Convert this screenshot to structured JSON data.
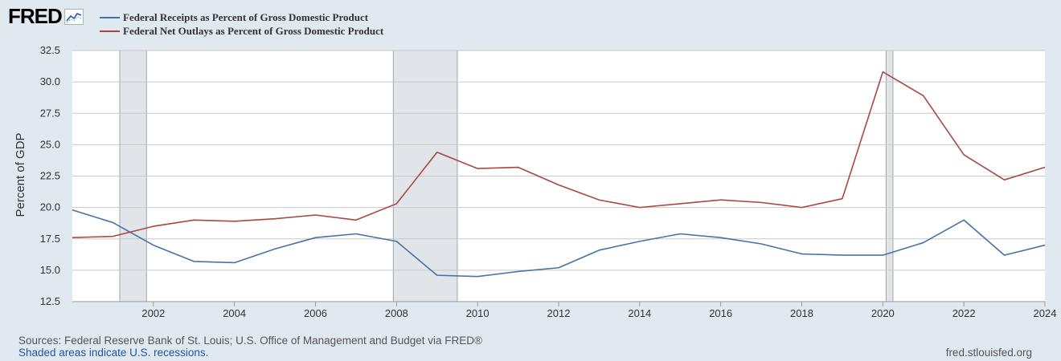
{
  "header": {
    "logo_text": "FRED",
    "logo_icon": "chart-line-icon"
  },
  "colors": {
    "background": "#e1e9f0",
    "plot_background": "#ffffff",
    "recession_shade": "#e1e5e9",
    "series_receipts": "#4572a7",
    "series_outlays": "#aa4643"
  },
  "footer": {
    "sources": "Sources: Federal Reserve Bank of St. Louis; U.S. Office of Management and Budget via FRED®",
    "shaded_note": "Shaded areas indicate U.S. recessions.",
    "site": "fred.stlouisfed.org"
  },
  "chart_data": {
    "type": "line",
    "ylabel": "Percent of GDP",
    "xlim": [
      2000,
      2024
    ],
    "ylim": [
      12.5,
      32.5
    ],
    "yticks": [
      "12.5",
      "15.0",
      "17.5",
      "20.0",
      "22.5",
      "25.0",
      "27.5",
      "30.0",
      "32.5"
    ],
    "xticks": [
      "2002",
      "2004",
      "2006",
      "2008",
      "2010",
      "2012",
      "2014",
      "2016",
      "2018",
      "2020",
      "2022",
      "2024"
    ],
    "grid": true,
    "legend": "top-left",
    "recessions": [
      [
        2001.17,
        2001.83
      ],
      [
        2007.92,
        2009.5
      ],
      [
        2020.08,
        2020.25
      ]
    ],
    "x": [
      2000,
      2001,
      2002,
      2003,
      2004,
      2005,
      2006,
      2007,
      2008,
      2009,
      2010,
      2011,
      2012,
      2013,
      2014,
      2015,
      2016,
      2017,
      2018,
      2019,
      2020,
      2021,
      2022,
      2023,
      2024
    ],
    "series": [
      {
        "name": "Federal Receipts as Percent of Gross Domestic Product",
        "color": "#4572a7",
        "values": [
          19.8,
          18.8,
          17.0,
          15.7,
          15.6,
          16.7,
          17.6,
          17.9,
          17.3,
          14.6,
          14.5,
          14.9,
          15.2,
          16.6,
          17.3,
          17.9,
          17.6,
          17.1,
          16.3,
          16.2,
          16.2,
          17.2,
          19.0,
          16.2,
          17.0
        ]
      },
      {
        "name": "Federal Net Outlays as Percent of Gross Domestic Product",
        "color": "#aa4643",
        "values": [
          17.6,
          17.7,
          18.5,
          19.0,
          18.9,
          19.1,
          19.4,
          19.0,
          20.3,
          24.4,
          23.1,
          23.2,
          21.8,
          20.6,
          20.0,
          20.3,
          20.6,
          20.4,
          20.0,
          20.7,
          30.8,
          28.9,
          24.2,
          22.2,
          23.2
        ]
      }
    ]
  }
}
